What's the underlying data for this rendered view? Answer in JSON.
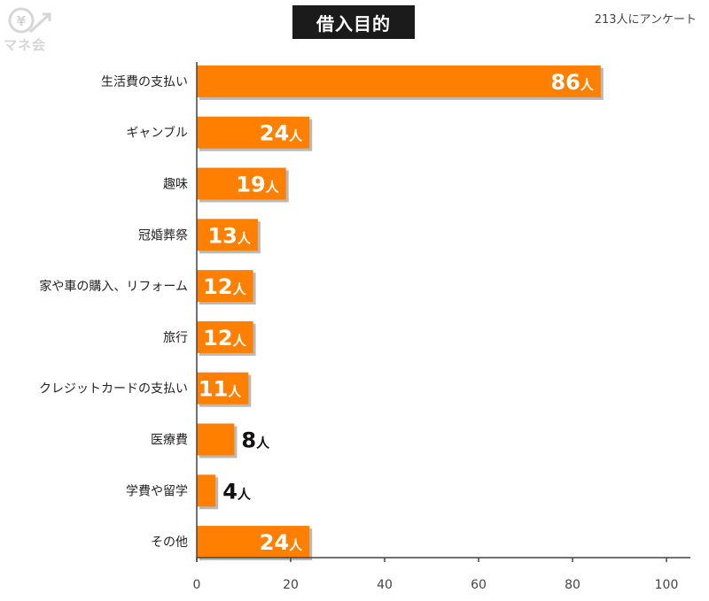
{
  "logo": {
    "name": "マネ会",
    "symbol": "¥"
  },
  "header": {
    "title": "借入目的",
    "note": "213人にアンケート"
  },
  "colors": {
    "bar": "#ff7f00",
    "bar_shadow": "#b9b9b9",
    "axis": "#444444",
    "title_bg": "#1b1b1b",
    "logo_gray": "#d6d6d6"
  },
  "chart_data": {
    "type": "bar",
    "orientation": "horizontal",
    "title": "借入目的",
    "subtitle": "213人にアンケート",
    "categories": [
      "生活費の支払い",
      "ギャンブル",
      "趣味",
      "冠婚葬祭",
      "家や車の購入、リフォーム",
      "旅行",
      "クレジットカードの支払い",
      "医療費",
      "学費や留学",
      "その他"
    ],
    "values": [
      86,
      24,
      19,
      13,
      12,
      12,
      11,
      8,
      4,
      24
    ],
    "value_unit": "人",
    "xlim": [
      0,
      100
    ],
    "xticks": [
      "0",
      "20",
      "40",
      "60",
      "80",
      "100"
    ],
    "grid": false,
    "legend": "none"
  }
}
